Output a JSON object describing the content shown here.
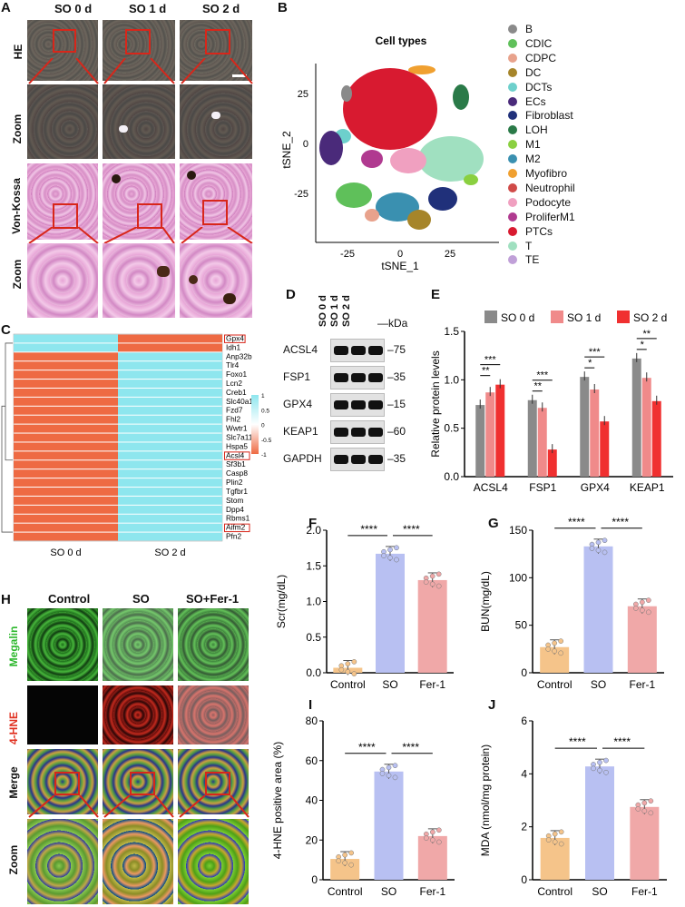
{
  "panels": {
    "A": "A",
    "B": "B",
    "C": "C",
    "D": "D",
    "E": "E",
    "F": "F",
    "G": "G",
    "H": "H",
    "I": "I",
    "J": "J"
  },
  "panelA": {
    "columns": [
      "SO 0 d",
      "SO 1 d",
      "SO 2 d"
    ],
    "rows": [
      "HE",
      "Zoom",
      "Von-Kossa",
      "Zoom"
    ]
  },
  "panelB": {
    "title": "Cell types",
    "xlabel": "tSNE_1",
    "ylabel": "tSNE_2",
    "xticks": [
      "-25",
      "0",
      "25"
    ],
    "yticks": [
      "25",
      "0",
      "-25"
    ],
    "legend": [
      {
        "name": "B",
        "color": "#8a8a8a"
      },
      {
        "name": "CDIC",
        "color": "#5fc05a"
      },
      {
        "name": "CDPC",
        "color": "#e8a28c"
      },
      {
        "name": "DC",
        "color": "#a6852a"
      },
      {
        "name": "DCTs",
        "color": "#6dd0cc"
      },
      {
        "name": "ECs",
        "color": "#4a2a7a"
      },
      {
        "name": "Fibroblast",
        "color": "#20307a"
      },
      {
        "name": "LOH",
        "color": "#2a7a48"
      },
      {
        "name": "M1",
        "color": "#8ad040"
      },
      {
        "name": "M2",
        "color": "#3a90b0"
      },
      {
        "name": "Myofibro",
        "color": "#f0a030"
      },
      {
        "name": "Neutrophil",
        "color": "#d04a48"
      },
      {
        "name": "Podocyte",
        "color": "#f0a0c0"
      },
      {
        "name": "ProliferM1",
        "color": "#b03a90"
      },
      {
        "name": "PTCs",
        "color": "#d81a30"
      },
      {
        "name": "T",
        "color": "#a0e0c0"
      },
      {
        "name": "TE",
        "color": "#c0a0d8"
      }
    ]
  },
  "panelC": {
    "genes": [
      "Gpx4",
      "Idh1",
      "Anp32b",
      "Tlr4",
      "Foxo1",
      "Lcn2",
      "Creb1",
      "Slc40a1",
      "Fzd7",
      "Fhl2",
      "Wwtr1",
      "Slc7a11",
      "Hspa5",
      "Acsl4",
      "Sf3b1",
      "Casp8",
      "Plin2",
      "Tgfbr1",
      "Stom",
      "Dpp4",
      "Rbms1",
      "Aifm2",
      "Pfn2"
    ],
    "boxed": [
      "Gpx4",
      "Acsl4",
      "Aifm2"
    ],
    "xlabels": [
      "SO 0 d",
      "SO 2 d"
    ],
    "scale": [
      "1",
      "0.5",
      "0",
      "-0.5",
      "-1"
    ],
    "high_color": "#8ee6ee",
    "low_color": "#ee6a43"
  },
  "panelD": {
    "lanes": [
      "SO 0 d",
      "SO 1 d",
      "SO 2 d"
    ],
    "kda": "—kDa",
    "proteins": [
      {
        "name": "ACSL4",
        "mw": "–75"
      },
      {
        "name": "FSP1",
        "mw": "–35"
      },
      {
        "name": "GPX4",
        "mw": "–15"
      },
      {
        "name": "KEAP1",
        "mw": "–60"
      },
      {
        "name": "GAPDH",
        "mw": "–35"
      }
    ]
  },
  "chart_data": [
    {
      "panel": "E",
      "type": "bar",
      "ylabel": "Relative protein levels",
      "ylim": [
        0,
        1.5
      ],
      "yticks": [
        "0.0",
        "0.5",
        "1.0",
        "1.5"
      ],
      "categories": [
        "ACSL4",
        "FSP1",
        "GPX4",
        "KEAP1"
      ],
      "series": [
        {
          "name": "SO 0 d",
          "color": "#8a8a8a",
          "values": [
            0.74,
            0.79,
            1.03,
            1.22
          ]
        },
        {
          "name": "SO 1 d",
          "color": "#f08a8a",
          "values": [
            0.87,
            0.71,
            0.9,
            1.02
          ]
        },
        {
          "name": "SO 2 d",
          "color": "#f03030",
          "values": [
            0.95,
            0.28,
            0.57,
            0.78
          ]
        }
      ],
      "significance": [
        "**",
        "***",
        "**",
        "***",
        "*",
        "***",
        "*",
        "**"
      ]
    },
    {
      "panel": "F",
      "type": "bar",
      "ylabel": "Scr(mg/dL)",
      "ylim": [
        0,
        2.0
      ],
      "yticks": [
        "0.0",
        "0.5",
        "1.0",
        "1.5",
        "2.0"
      ],
      "categories": [
        "Control",
        "SO",
        "Fer-1"
      ],
      "values": [
        0.07,
        1.67,
        1.3
      ],
      "colors": [
        "#f5c48a",
        "#b8c0f2",
        "#f0a8a8"
      ],
      "significance": [
        "****",
        "****"
      ]
    },
    {
      "panel": "G",
      "type": "bar",
      "ylabel": "BUN(mg/dL)",
      "ylim": [
        0,
        150
      ],
      "yticks": [
        "0",
        "50",
        "100",
        "150"
      ],
      "categories": [
        "Control",
        "SO",
        "Fer-1"
      ],
      "values": [
        27,
        133,
        70
      ],
      "colors": [
        "#f5c48a",
        "#b8c0f2",
        "#f0a8a8"
      ],
      "significance": [
        "****",
        "****"
      ]
    },
    {
      "panel": "I",
      "type": "bar",
      "ylabel": "4-HNE positive area (%)",
      "ylim": [
        0,
        80
      ],
      "yticks": [
        "0",
        "20",
        "40",
        "60",
        "80"
      ],
      "categories": [
        "Control",
        "SO",
        "Fer-1"
      ],
      "values": [
        10.5,
        54.5,
        22
      ],
      "colors": [
        "#f5c48a",
        "#b8c0f2",
        "#f0a8a8"
      ],
      "significance": [
        "****",
        "****"
      ]
    },
    {
      "panel": "J",
      "type": "bar",
      "ylabel": "MDA (nmol/mg protein)",
      "ylim": [
        0,
        6
      ],
      "yticks": [
        "0",
        "2",
        "4",
        "6"
      ],
      "categories": [
        "Control",
        "SO",
        "Fer-1"
      ],
      "values": [
        1.58,
        4.28,
        2.75
      ],
      "colors": [
        "#f5c48a",
        "#b8c0f2",
        "#f0a8a8"
      ],
      "significance": [
        "****",
        "****"
      ]
    }
  ],
  "panelH": {
    "columns": [
      "Control",
      "SO",
      "SO+Fer-1"
    ],
    "rows": [
      {
        "label": "Megalin",
        "color": "#2db82d"
      },
      {
        "label": "4-HNE",
        "color": "#e03020"
      },
      {
        "label": "Merge",
        "color": "#111111"
      },
      {
        "label": "Zoom",
        "color": "#111111"
      }
    ]
  }
}
